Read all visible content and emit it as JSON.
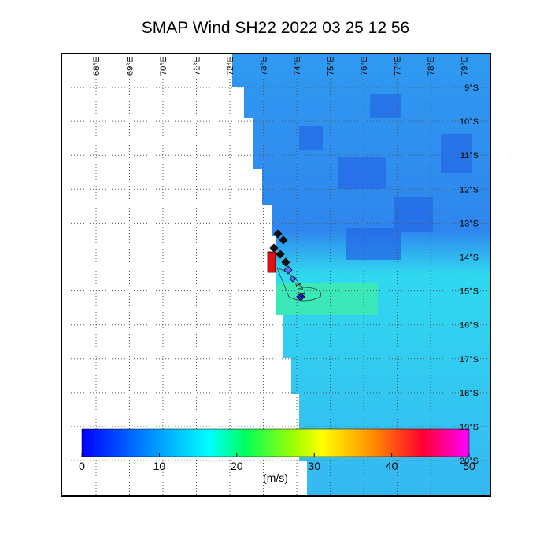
{
  "title": "SMAP Wind  SH22  2022 03 25 12 56",
  "longitude_labels": [
    "68°E",
    "69°E",
    "70°E",
    "71°E",
    "72°E",
    "73°E",
    "74°E",
    "75°E",
    "76°E",
    "77°E",
    "78°E",
    "79°E"
  ],
  "latitude_labels": [
    "9°S",
    "10°S",
    "11°S",
    "12°S",
    "13°S",
    "14°S",
    "15°S",
    "16°S",
    "17°S",
    "18°S",
    "19°S",
    "20°S"
  ],
  "colorbar": {
    "ticks": [
      0,
      10,
      20,
      30,
      40,
      50
    ],
    "unit": "(m/s)"
  },
  "contour_label": "17.5"
}
